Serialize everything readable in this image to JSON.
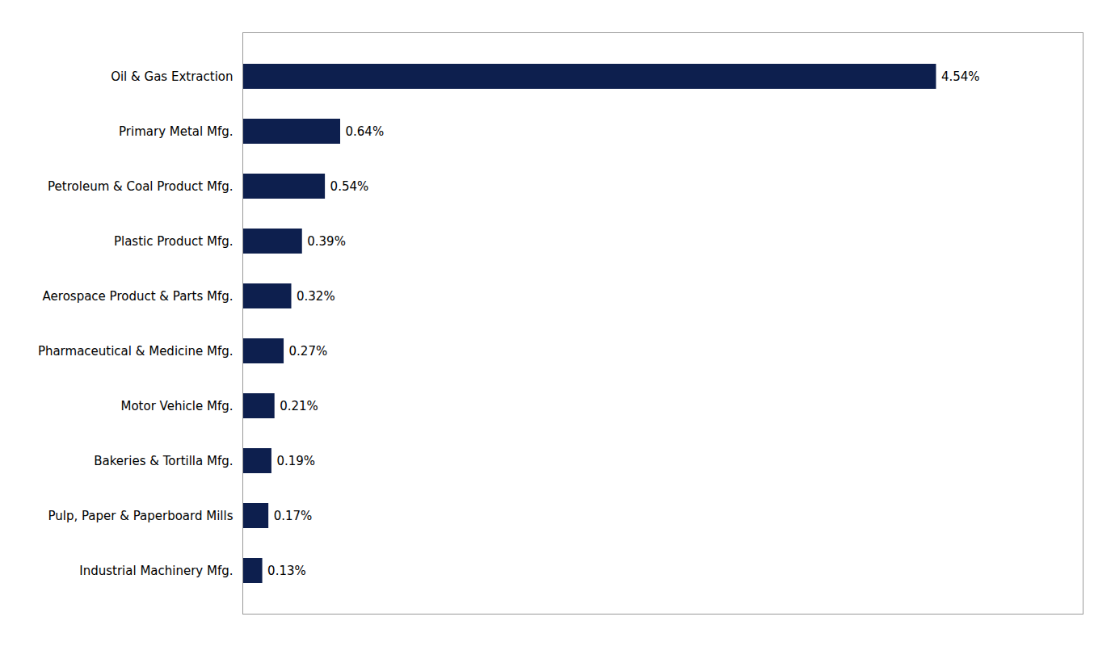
{
  "chart_data": {
    "type": "bar",
    "orientation": "horizontal",
    "categories": [
      "Industrial Machinery Mfg.",
      "Pulp, Paper & Paperboard Mills",
      "Bakeries & Tortilla Mfg.",
      "Motor Vehicle Mfg.",
      "Pharmaceutical & Medicine Mfg.",
      "Aerospace Product & Parts Mfg.",
      "Plastic Product Mfg.",
      "Petroleum & Coal Product Mfg.",
      "Primary Metal Mfg.",
      "Oil & Gas Extraction"
    ],
    "values": [
      0.13,
      0.17,
      0.19,
      0.21,
      0.27,
      0.32,
      0.39,
      0.54,
      0.64,
      4.54
    ],
    "value_labels": [
      "0.13%",
      "0.17%",
      "0.19%",
      "0.21%",
      "0.27%",
      "0.32%",
      "0.39%",
      "0.54%",
      "0.64%",
      "4.54%"
    ],
    "color": "#0d1f4e",
    "xlim": [
      0,
      5.5
    ],
    "data_labels": true,
    "tick_labels": "y",
    "grid": false
  }
}
